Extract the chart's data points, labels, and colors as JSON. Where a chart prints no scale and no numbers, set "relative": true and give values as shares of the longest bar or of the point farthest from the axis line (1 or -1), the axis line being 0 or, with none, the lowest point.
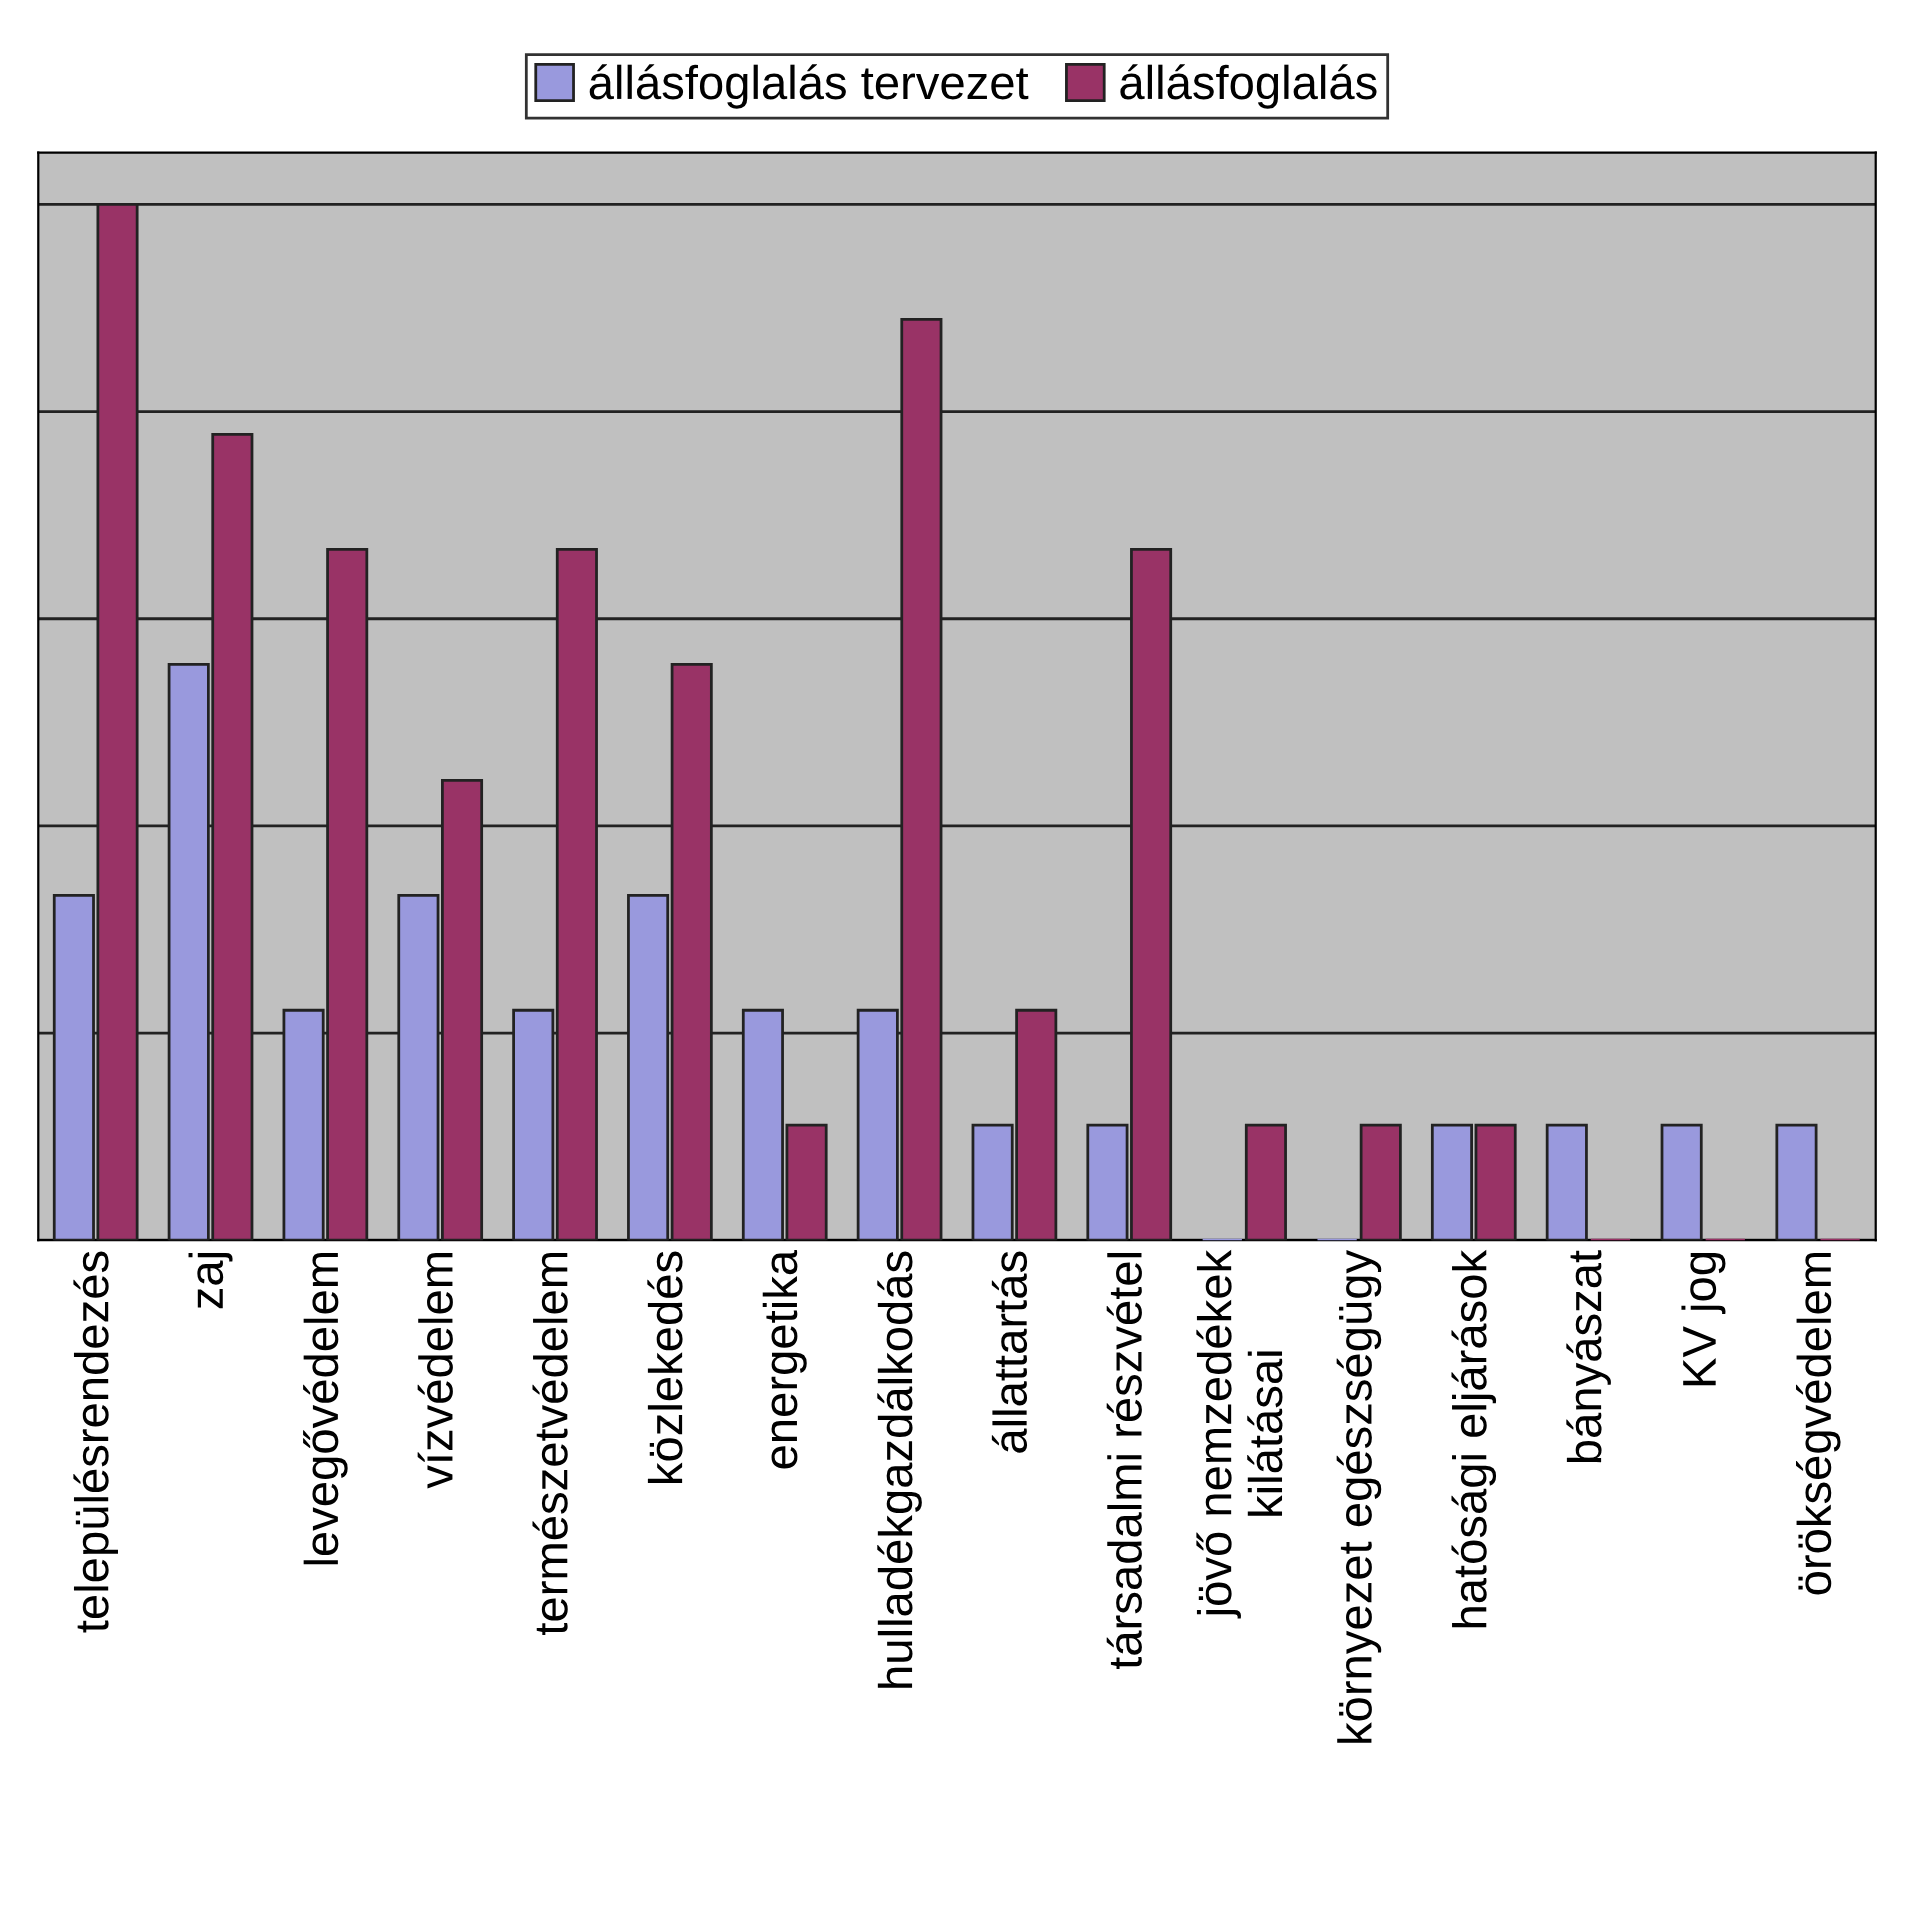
{
  "chart_data": {
    "type": "bar",
    "relative": true,
    "grid": "y",
    "legend": "top",
    "categories": [
      "településrendezés",
      "zaj",
      "levegővédelem",
      "vízvédelem",
      "természetvédelem",
      "közlekedés",
      "energetika",
      "hulladékgazdálkodás",
      "állattartás",
      "társadalmi részvétel",
      "jövő nemzedékek\nkilátásai",
      "környezet egészségügy",
      "hatósági eljárások",
      "bányászat",
      "KV jog",
      "örökségvédelem"
    ],
    "series": [
      {
        "name": "állásfoglalás tervezet",
        "color": "#9999dd",
        "values": [
          0.333,
          0.556,
          0.222,
          0.333,
          0.222,
          0.333,
          0.222,
          0.222,
          0.111,
          0.111,
          0,
          0,
          0.111,
          0.111,
          0.111,
          0.111
        ]
      },
      {
        "name": "állásfoglalás",
        "color": "#993366",
        "values": [
          1,
          0.778,
          0.667,
          0.444,
          0.667,
          0.556,
          0.111,
          0.889,
          0.222,
          0.667,
          0.111,
          0.111,
          0.111,
          0,
          0,
          0
        ]
      }
    ]
  }
}
